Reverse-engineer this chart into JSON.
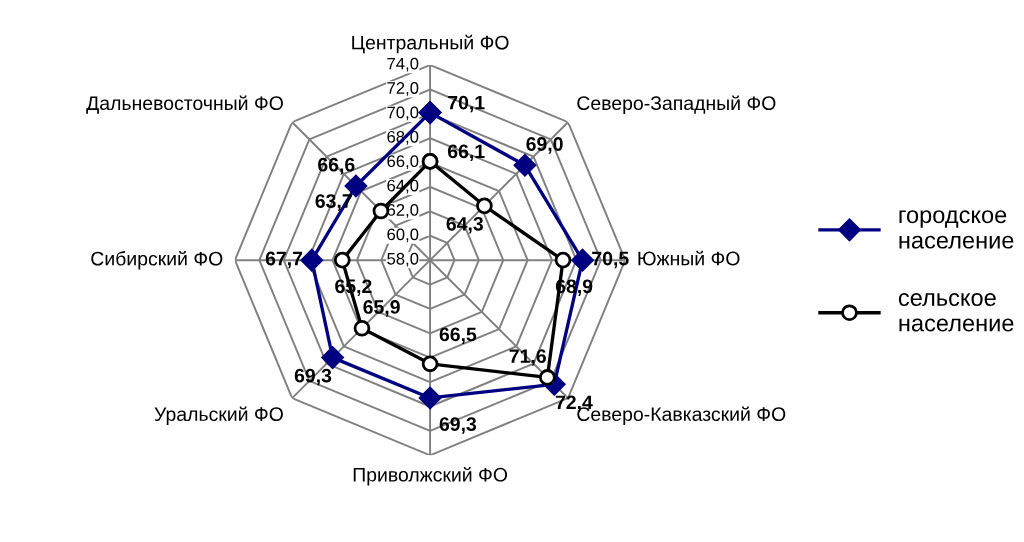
{
  "chart_data": {
    "type": "radar",
    "categories": [
      "Центральный ФО",
      "Северо-Западный ФО",
      "Южный ФО",
      "Северо-Кавказский ФО",
      "Приволжский ФО",
      "Уральский ФО",
      "Сибирский ФО",
      "Дальневосточный ФО"
    ],
    "series": [
      {
        "name": "городское население",
        "color": "#000080",
        "marker": "diamond",
        "values": [
          70.1,
          69.0,
          70.5,
          72.4,
          69.3,
          69.3,
          67.7,
          66.6
        ],
        "value_labels": [
          "70,1",
          "69,0",
          "70,5",
          "72,4",
          "69,3",
          "69,3",
          "67,7",
          "66,6"
        ]
      },
      {
        "name": "сельское население",
        "color": "#000000",
        "marker": "circle",
        "values": [
          66.1,
          64.3,
          68.9,
          71.6,
          66.5,
          65.9,
          65.2,
          63.7
        ],
        "value_labels": [
          "66,1",
          "64,3",
          "68,9",
          "71,6",
          "66,5",
          "65,9",
          "65,2",
          "63,7"
        ]
      }
    ],
    "ylim": [
      58,
      74
    ],
    "yticks": [
      {
        "value": 58,
        "label": "58,0"
      },
      {
        "value": 60,
        "label": "60,0"
      },
      {
        "value": 62,
        "label": "62,0"
      },
      {
        "value": 64,
        "label": "64,0"
      },
      {
        "value": 66,
        "label": "66,0"
      },
      {
        "value": 68,
        "label": "68,0"
      },
      {
        "value": 70,
        "label": "70,0"
      },
      {
        "value": 72,
        "label": "72,0"
      },
      {
        "value": 74,
        "label": "74,0"
      }
    ],
    "grid": true,
    "legend": "right"
  }
}
